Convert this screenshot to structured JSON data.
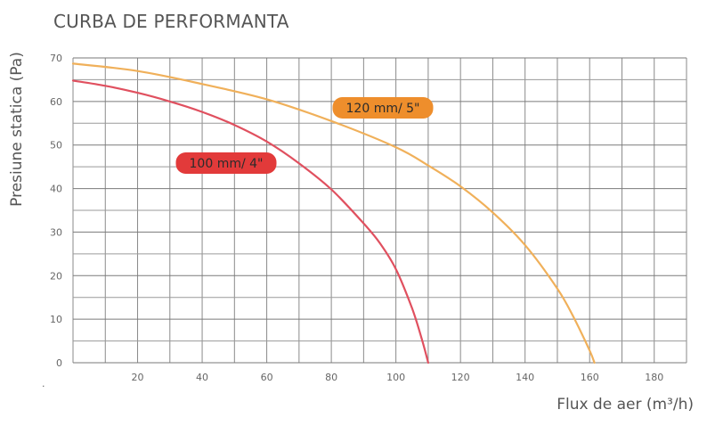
{
  "chart_data": {
    "type": "line",
    "title": "CURBA DE PERFORMANTA",
    "xlabel": "Flux de aer (m³/h)",
    "ylabel": "Presiune statica (Pa)",
    "xlim": [
      0,
      190
    ],
    "ylim": [
      0,
      70
    ],
    "x_ticks": [
      20,
      40,
      60,
      80,
      100,
      120,
      140,
      160,
      180
    ],
    "y_ticks": [
      0,
      10,
      20,
      30,
      40,
      50,
      60,
      70
    ],
    "grid": true,
    "series": [
      {
        "name": "100 mm/ 4\"",
        "color": "#e0505f",
        "label_color": "#e23a3a",
        "points": [
          [
            0,
            64.8
          ],
          [
            10,
            63.6
          ],
          [
            20,
            62
          ],
          [
            30,
            60
          ],
          [
            40,
            57.6
          ],
          [
            50,
            54.6
          ],
          [
            60,
            50.8
          ],
          [
            70,
            45.8
          ],
          [
            80,
            39.8
          ],
          [
            90,
            32
          ],
          [
            95,
            27.5
          ],
          [
            100,
            21.5
          ],
          [
            105,
            12.5
          ],
          [
            108,
            5.5
          ],
          [
            110,
            0
          ]
        ]
      },
      {
        "name": "120 mm/ 5\"",
        "color": "#f0b05a",
        "label_color": "#ee8e2c",
        "points": [
          [
            0,
            68.7
          ],
          [
            20,
            67
          ],
          [
            40,
            64
          ],
          [
            60,
            60.5
          ],
          [
            80,
            55.5
          ],
          [
            100,
            49.5
          ],
          [
            110,
            45.3
          ],
          [
            120,
            40.5
          ],
          [
            130,
            34.5
          ],
          [
            140,
            27
          ],
          [
            150,
            17
          ],
          [
            155,
            10.5
          ],
          [
            160,
            2.8
          ],
          [
            161.5,
            0
          ]
        ]
      }
    ]
  },
  "footnote": "."
}
